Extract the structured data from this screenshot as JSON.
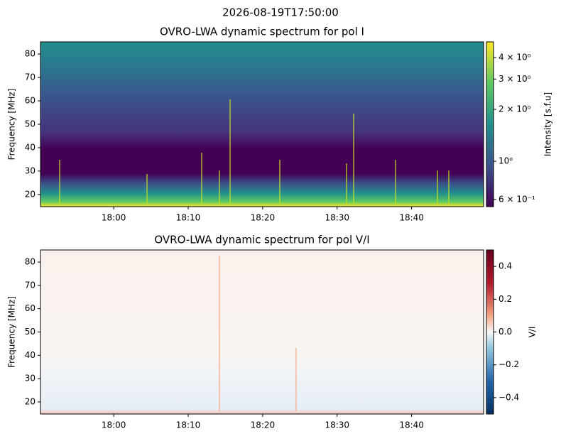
{
  "title": "2026-08-19T17:50:00",
  "chart_data": [
    {
      "type": "heatmap",
      "title": "OVRO-LWA dynamic spectrum for pol I",
      "ylabel": "Frequency [MHz]",
      "xlim": [
        "2026-08-19T17:50:10",
        "2026-08-19T18:49:40"
      ],
      "xticks": [
        {
          "value": "2026-08-19T18:00:00",
          "label": "18:00"
        },
        {
          "value": "2026-08-19T18:10:00",
          "label": "18:10"
        },
        {
          "value": "2026-08-19T18:20:00",
          "label": "18:20"
        },
        {
          "value": "2026-08-19T18:30:00",
          "label": "18:30"
        },
        {
          "value": "2026-08-19T18:40:00",
          "label": "18:40"
        }
      ],
      "ylim": [
        14.8,
        85.2
      ],
      "yticks": [
        20,
        30,
        40,
        50,
        60,
        70,
        80
      ],
      "colorbar": {
        "label": "Intensity [s.f.u]",
        "scale": "log",
        "colormap": "viridis",
        "lim": [
          0.545,
          4.93
        ],
        "ticks": [
          {
            "value": 4,
            "label": "4 × 10⁰"
          },
          {
            "value": 3,
            "label": "3 × 10⁰"
          },
          {
            "value": 2,
            "label": "2 × 10⁰"
          },
          {
            "value": 1,
            "label": "10⁰"
          },
          {
            "value": 0.6,
            "label": "6 × 10⁻¹"
          }
        ]
      }
    },
    {
      "type": "heatmap",
      "title": "OVRO-LWA dynamic spectrum for pol V/I",
      "ylabel": "Frequency [MHz]",
      "xlim": [
        "2026-08-19T17:50:10",
        "2026-08-19T18:49:40"
      ],
      "xticks": [
        {
          "value": "2026-08-19T18:00:00",
          "label": "18:00"
        },
        {
          "value": "2026-08-19T18:10:00",
          "label": "18:10"
        },
        {
          "value": "2026-08-19T18:20:00",
          "label": "18:20"
        },
        {
          "value": "2026-08-19T18:30:00",
          "label": "18:30"
        },
        {
          "value": "2026-08-19T18:40:00",
          "label": "18:40"
        }
      ],
      "ylim": [
        14.8,
        85.2
      ],
      "yticks": [
        20,
        30,
        40,
        50,
        60,
        70,
        80
      ],
      "colorbar": {
        "label": "V/I",
        "scale": "linear",
        "colormap": "RdBu_r",
        "lim": [
          -0.5,
          0.5
        ],
        "ticks": [
          0.4,
          0.2,
          {
            "value": 0.0,
            "label": "0.0"
          },
          {
            "value": -0.2,
            "label": "−0.2"
          },
          {
            "value": -0.4,
            "label": "−0.4"
          }
        ]
      }
    }
  ]
}
